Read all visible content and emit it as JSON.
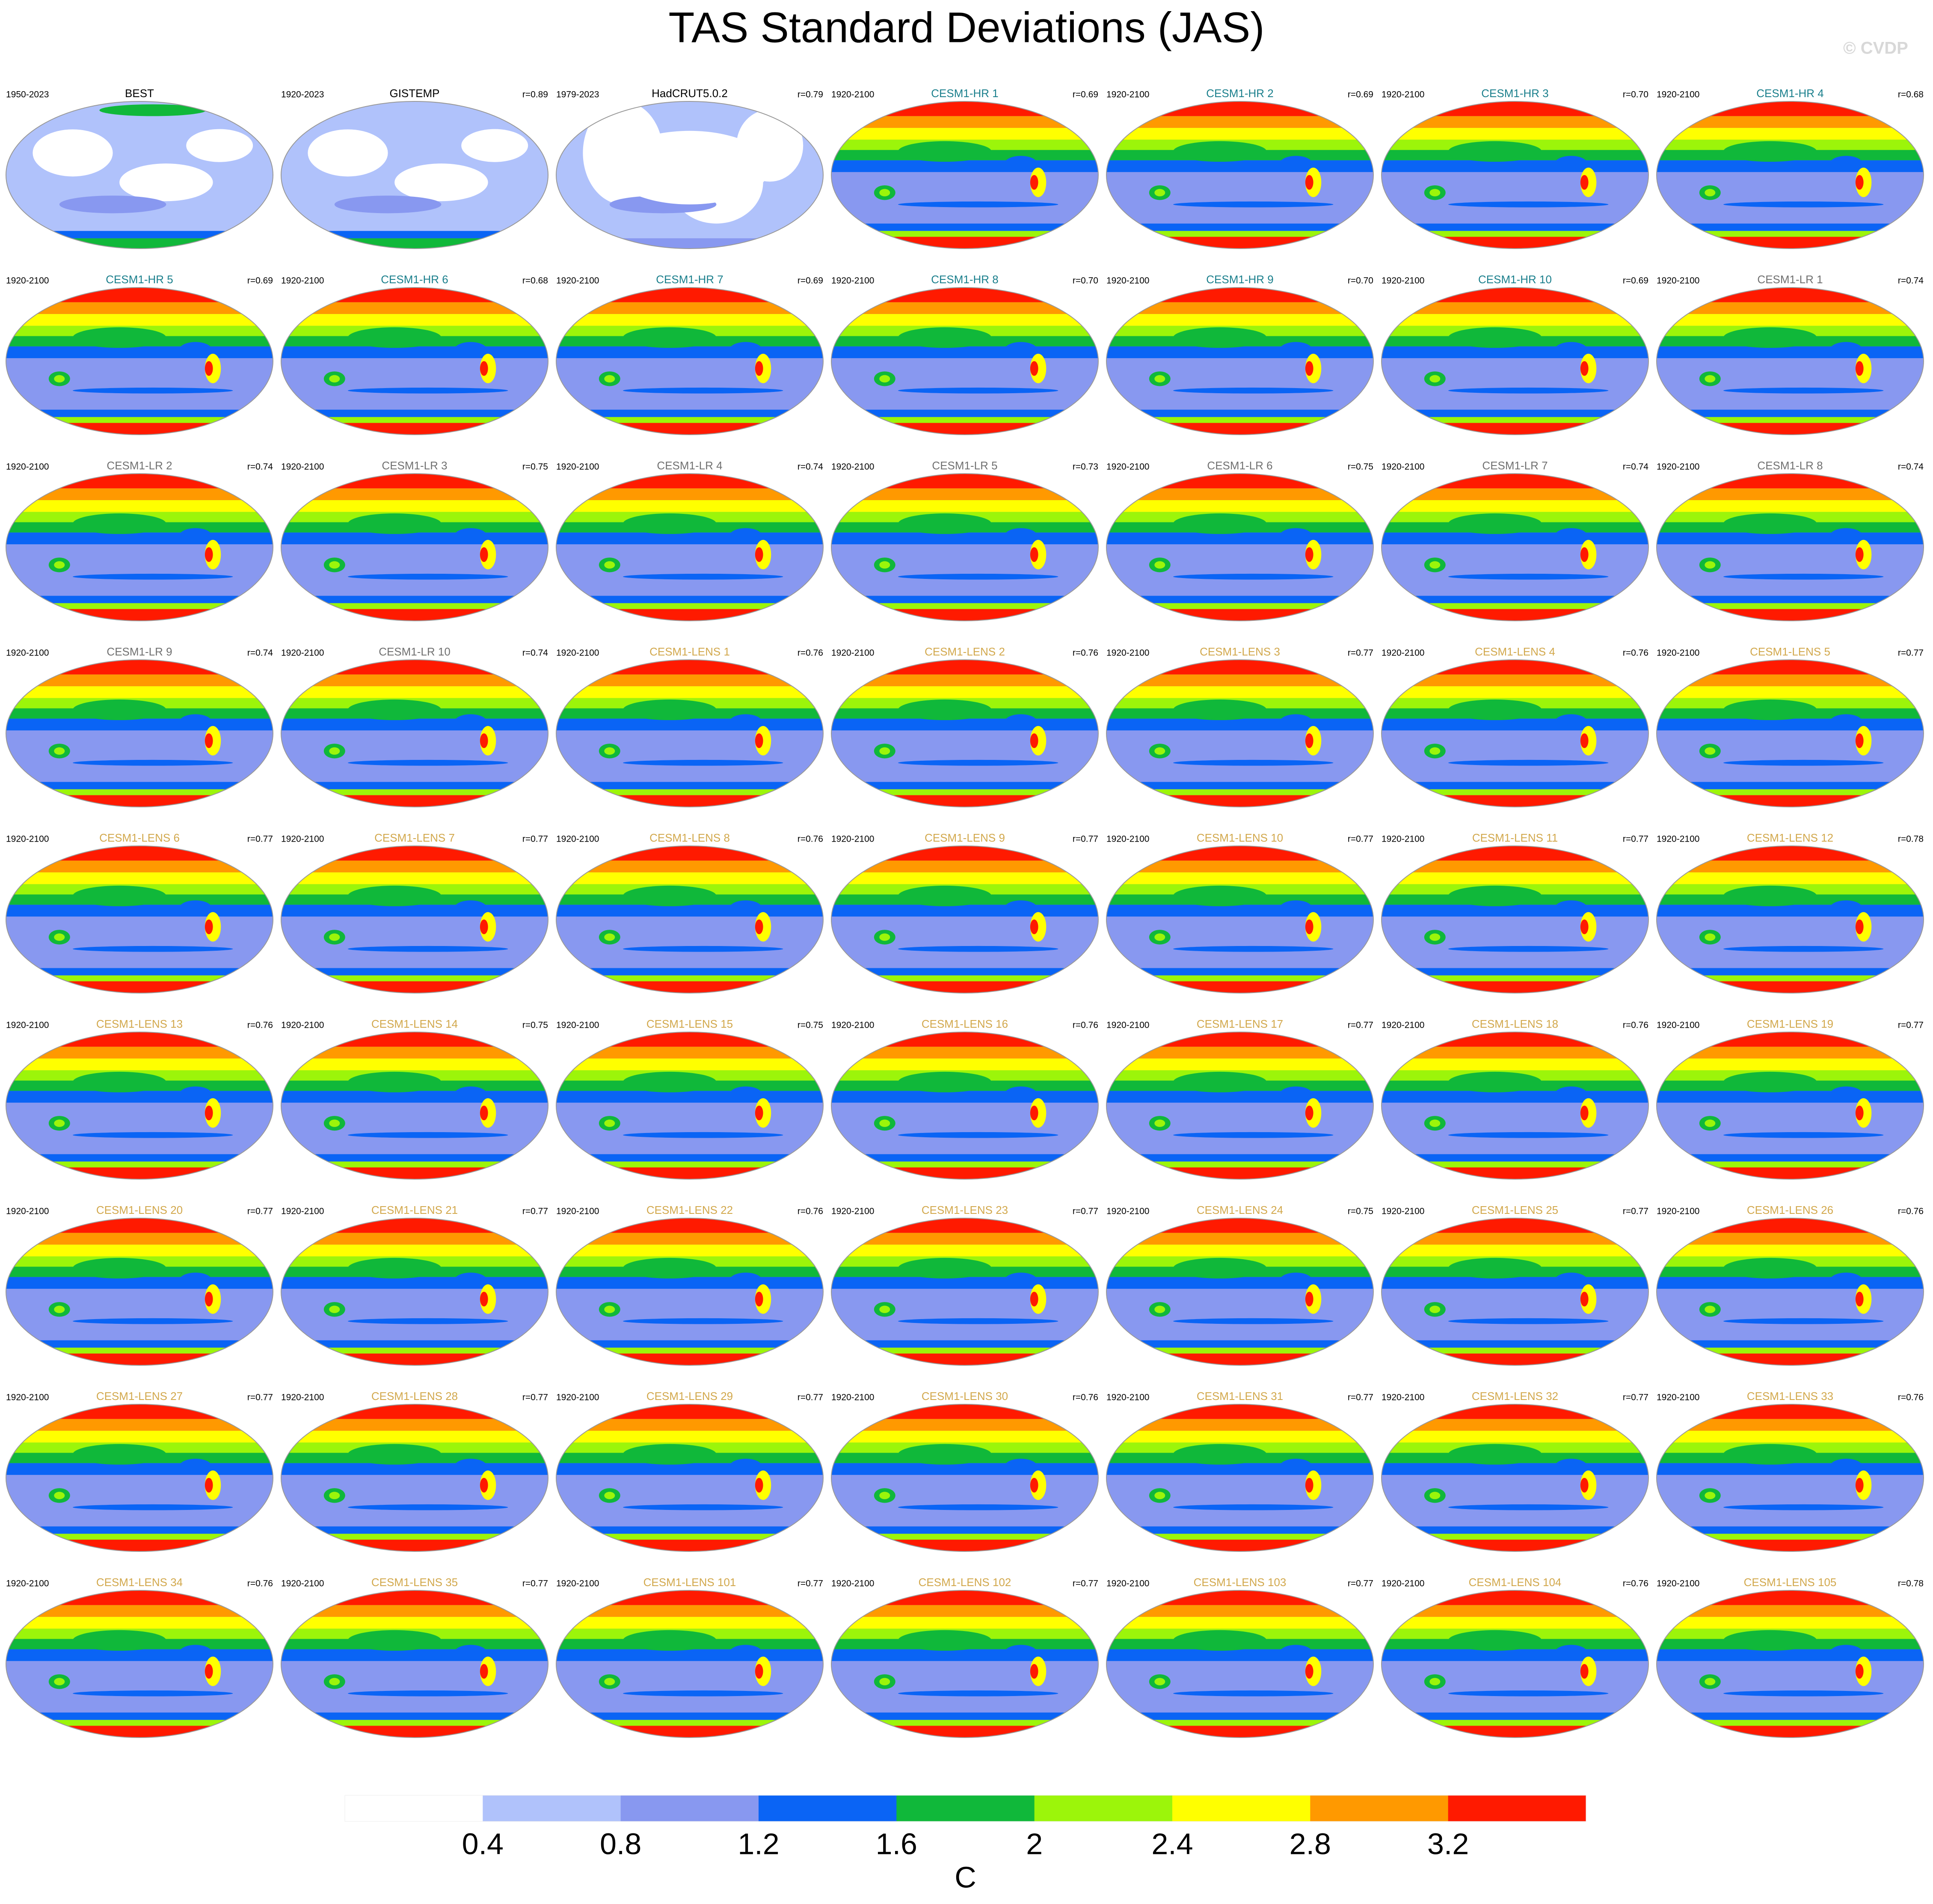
{
  "title": "TAS Standard Deviations (JAS)",
  "watermark": "© CVDP",
  "panels": [
    {
      "period": "1950-2023",
      "name": "BEST",
      "color": "#000000"
    },
    {
      "period": "1920-2023",
      "name": "GISTEMP",
      "r": "r=0.89",
      "color": "#000000"
    },
    {
      "period": "1979-2023",
      "name": "HadCRUT5.0.2",
      "r": "r=0.79",
      "color": "#000000"
    },
    {
      "period": "1920-2100",
      "name": "CESM1-HR 1",
      "r": "r=0.69",
      "color": "#1a7f8c"
    },
    {
      "period": "1920-2100",
      "name": "CESM1-HR 2",
      "r": "r=0.69",
      "color": "#1a7f8c"
    },
    {
      "period": "1920-2100",
      "name": "CESM1-HR 3",
      "r": "r=0.70",
      "color": "#1a7f8c"
    },
    {
      "period": "1920-2100",
      "name": "CESM1-HR 4",
      "r": "r=0.68",
      "color": "#1a7f8c"
    },
    {
      "period": "1920-2100",
      "name": "CESM1-HR 5",
      "r": "r=0.69",
      "color": "#1a7f8c"
    },
    {
      "period": "1920-2100",
      "name": "CESM1-HR 6",
      "r": "r=0.68",
      "color": "#1a7f8c"
    },
    {
      "period": "1920-2100",
      "name": "CESM1-HR 7",
      "r": "r=0.69",
      "color": "#1a7f8c"
    },
    {
      "period": "1920-2100",
      "name": "CESM1-HR 8",
      "r": "r=0.70",
      "color": "#1a7f8c"
    },
    {
      "period": "1920-2100",
      "name": "CESM1-HR 9",
      "r": "r=0.70",
      "color": "#1a7f8c"
    },
    {
      "period": "1920-2100",
      "name": "CESM1-HR 10",
      "r": "r=0.69",
      "color": "#1a7f8c"
    },
    {
      "period": "1920-2100",
      "name": "CESM1-LR 1",
      "r": "r=0.74",
      "color": "#707070"
    },
    {
      "period": "1920-2100",
      "name": "CESM1-LR 2",
      "r": "r=0.74",
      "color": "#707070"
    },
    {
      "period": "1920-2100",
      "name": "CESM1-LR 3",
      "r": "r=0.75",
      "color": "#707070"
    },
    {
      "period": "1920-2100",
      "name": "CESM1-LR 4",
      "r": "r=0.74",
      "color": "#707070"
    },
    {
      "period": "1920-2100",
      "name": "CESM1-LR 5",
      "r": "r=0.73",
      "color": "#707070"
    },
    {
      "period": "1920-2100",
      "name": "CESM1-LR 6",
      "r": "r=0.75",
      "color": "#707070"
    },
    {
      "period": "1920-2100",
      "name": "CESM1-LR 7",
      "r": "r=0.74",
      "color": "#707070"
    },
    {
      "period": "1920-2100",
      "name": "CESM1-LR 8",
      "r": "r=0.74",
      "color": "#707070"
    },
    {
      "period": "1920-2100",
      "name": "CESM1-LR 9",
      "r": "r=0.74",
      "color": "#707070"
    },
    {
      "period": "1920-2100",
      "name": "CESM1-LR 10",
      "r": "r=0.74",
      "color": "#707070"
    },
    {
      "period": "1920-2100",
      "name": "CESM1-LENS 1",
      "r": "r=0.76",
      "color": "#d2a84c"
    },
    {
      "period": "1920-2100",
      "name": "CESM1-LENS 2",
      "r": "r=0.76",
      "color": "#d2a84c"
    },
    {
      "period": "1920-2100",
      "name": "CESM1-LENS 3",
      "r": "r=0.77",
      "color": "#d2a84c"
    },
    {
      "period": "1920-2100",
      "name": "CESM1-LENS 4",
      "r": "r=0.76",
      "color": "#d2a84c"
    },
    {
      "period": "1920-2100",
      "name": "CESM1-LENS 5",
      "r": "r=0.77",
      "color": "#d2a84c"
    },
    {
      "period": "1920-2100",
      "name": "CESM1-LENS 6",
      "r": "r=0.77",
      "color": "#d2a84c"
    },
    {
      "period": "1920-2100",
      "name": "CESM1-LENS 7",
      "r": "r=0.77",
      "color": "#d2a84c"
    },
    {
      "period": "1920-2100",
      "name": "CESM1-LENS 8",
      "r": "r=0.76",
      "color": "#d2a84c"
    },
    {
      "period": "1920-2100",
      "name": "CESM1-LENS 9",
      "r": "r=0.77",
      "color": "#d2a84c"
    },
    {
      "period": "1920-2100",
      "name": "CESM1-LENS 10",
      "r": "r=0.77",
      "color": "#d2a84c"
    },
    {
      "period": "1920-2100",
      "name": "CESM1-LENS 11",
      "r": "r=0.77",
      "color": "#d2a84c"
    },
    {
      "period": "1920-2100",
      "name": "CESM1-LENS 12",
      "r": "r=0.78",
      "color": "#d2a84c"
    },
    {
      "period": "1920-2100",
      "name": "CESM1-LENS 13",
      "r": "r=0.76",
      "color": "#d2a84c"
    },
    {
      "period": "1920-2100",
      "name": "CESM1-LENS 14",
      "r": "r=0.75",
      "color": "#d2a84c"
    },
    {
      "period": "1920-2100",
      "name": "CESM1-LENS 15",
      "r": "r=0.75",
      "color": "#d2a84c"
    },
    {
      "period": "1920-2100",
      "name": "CESM1-LENS 16",
      "r": "r=0.76",
      "color": "#d2a84c"
    },
    {
      "period": "1920-2100",
      "name": "CESM1-LENS 17",
      "r": "r=0.77",
      "color": "#d2a84c"
    },
    {
      "period": "1920-2100",
      "name": "CESM1-LENS 18",
      "r": "r=0.76",
      "color": "#d2a84c"
    },
    {
      "period": "1920-2100",
      "name": "CESM1-LENS 19",
      "r": "r=0.77",
      "color": "#d2a84c"
    },
    {
      "period": "1920-2100",
      "name": "CESM1-LENS 20",
      "r": "r=0.77",
      "color": "#d2a84c"
    },
    {
      "period": "1920-2100",
      "name": "CESM1-LENS 21",
      "r": "r=0.77",
      "color": "#d2a84c"
    },
    {
      "period": "1920-2100",
      "name": "CESM1-LENS 22",
      "r": "r=0.76",
      "color": "#d2a84c"
    },
    {
      "period": "1920-2100",
      "name": "CESM1-LENS 23",
      "r": "r=0.77",
      "color": "#d2a84c"
    },
    {
      "period": "1920-2100",
      "name": "CESM1-LENS 24",
      "r": "r=0.75",
      "color": "#d2a84c"
    },
    {
      "period": "1920-2100",
      "name": "CESM1-LENS 25",
      "r": "r=0.77",
      "color": "#d2a84c"
    },
    {
      "period": "1920-2100",
      "name": "CESM1-LENS 26",
      "r": "r=0.76",
      "color": "#d2a84c"
    },
    {
      "period": "1920-2100",
      "name": "CESM1-LENS 27",
      "r": "r=0.77",
      "color": "#d2a84c"
    },
    {
      "period": "1920-2100",
      "name": "CESM1-LENS 28",
      "r": "r=0.77",
      "color": "#d2a84c"
    },
    {
      "period": "1920-2100",
      "name": "CESM1-LENS 29",
      "r": "r=0.77",
      "color": "#d2a84c"
    },
    {
      "period": "1920-2100",
      "name": "CESM1-LENS 30",
      "r": "r=0.76",
      "color": "#d2a84c"
    },
    {
      "period": "1920-2100",
      "name": "CESM1-LENS 31",
      "r": "r=0.77",
      "color": "#d2a84c"
    },
    {
      "period": "1920-2100",
      "name": "CESM1-LENS 32",
      "r": "r=0.77",
      "color": "#d2a84c"
    },
    {
      "period": "1920-2100",
      "name": "CESM1-LENS 33",
      "r": "r=0.76",
      "color": "#d2a84c"
    },
    {
      "period": "1920-2100",
      "name": "CESM1-LENS 34",
      "r": "r=0.76",
      "color": "#d2a84c"
    },
    {
      "period": "1920-2100",
      "name": "CESM1-LENS 35",
      "r": "r=0.77",
      "color": "#d2a84c"
    },
    {
      "period": "1920-2100",
      "name": "CESM1-LENS 101",
      "r": "r=0.77",
      "color": "#d2a84c"
    },
    {
      "period": "1920-2100",
      "name": "CESM1-LENS 102",
      "r": "r=0.77",
      "color": "#d2a84c"
    },
    {
      "period": "1920-2100",
      "name": "CESM1-LENS 103",
      "r": "r=0.77",
      "color": "#d2a84c"
    },
    {
      "period": "1920-2100",
      "name": "CESM1-LENS 104",
      "r": "r=0.76",
      "color": "#d2a84c"
    },
    {
      "period": "1920-2100",
      "name": "CESM1-LENS 105",
      "r": "r=0.78",
      "color": "#d2a84c"
    }
  ],
  "colorbar": {
    "colors": [
      "#ffffff",
      "#b0c2fb",
      "#8898f0",
      "#0a64f5",
      "#10b83a",
      "#9cf50a",
      "#ffff00",
      "#ff9900",
      "#ff1a00"
    ],
    "ticks": [
      0.4,
      0.8,
      1.2,
      1.6,
      2,
      2.4,
      2.8,
      3.2
    ],
    "unit": "C"
  }
}
